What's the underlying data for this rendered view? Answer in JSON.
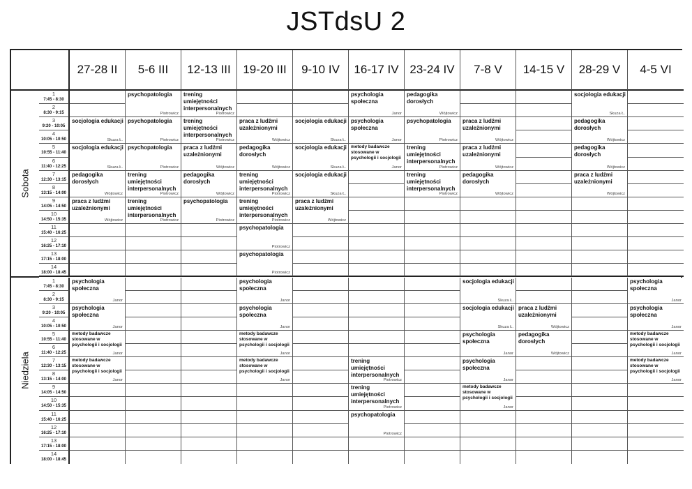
{
  "title": "JSTdsU 2",
  "columns": [
    "27-28 II",
    "5-6 III",
    "12-13 III",
    "19-20 III",
    "9-10 IV",
    "16-17 IV",
    "23-24 IV",
    "7-8 V",
    "14-15 V",
    "28-29 V",
    "4-5 VI"
  ],
  "slots": [
    {
      "n": "1",
      "time": "7:45 - 8:30"
    },
    {
      "n": "2",
      "time": "8:30 - 9:15"
    },
    {
      "n": "3",
      "time": "9:20 - 10:05"
    },
    {
      "n": "4",
      "time": "10:05 - 10:50"
    },
    {
      "n": "5",
      "time": "10:55 - 11:40"
    },
    {
      "n": "6",
      "time": "11:40 - 12:25"
    },
    {
      "n": "7",
      "time": "12:30 - 13:15"
    },
    {
      "n": "8",
      "time": "13:15 - 14:00"
    },
    {
      "n": "9",
      "time": "14:05 - 14:50"
    },
    {
      "n": "10",
      "time": "14:50 - 15:35"
    },
    {
      "n": "11",
      "time": "15:40 - 16:25"
    },
    {
      "n": "12",
      "time": "16:25 - 17:10"
    },
    {
      "n": "13",
      "time": "17:15 - 18:00"
    },
    {
      "n": "14",
      "time": "18:00 - 18:45"
    }
  ],
  "subjects": {
    "SE": "socjologia edukacji",
    "PP": "psychopatologia",
    "TR": "trening umiejętności interpersonalnych",
    "PD": "pedagogika dorosłych",
    "PL": "praca z ludźmi uzależnionymi",
    "PS": "psychologia społeczna",
    "MB": "metody badawcze stosowane w psychologii i socjologii"
  },
  "teachers": {
    "SE": "Skuza Ł.",
    "PP": "Piotrowicz",
    "TR": "Piotrowicz",
    "PD": "Wójtowicz",
    "PL": "Wójtowicz",
    "PS": "Janor",
    "MB": "Janor"
  },
  "days": [
    {
      "label": "Sobota",
      "blocks": [
        {
          "col": 0,
          "start": 3,
          "span": 2,
          "subj": "SE"
        },
        {
          "col": 0,
          "start": 5,
          "span": 2,
          "subj": "SE"
        },
        {
          "col": 0,
          "start": 7,
          "span": 2,
          "subj": "PD"
        },
        {
          "col": 0,
          "start": 9,
          "span": 2,
          "subj": "PL"
        },
        {
          "col": 1,
          "start": 1,
          "span": 2,
          "subj": "PP"
        },
        {
          "col": 1,
          "start": 3,
          "span": 2,
          "subj": "PP"
        },
        {
          "col": 1,
          "start": 5,
          "span": 2,
          "subj": "PP"
        },
        {
          "col": 1,
          "start": 7,
          "span": 2,
          "subj": "TR"
        },
        {
          "col": 1,
          "start": 9,
          "span": 2,
          "subj": "TR"
        },
        {
          "col": 2,
          "start": 1,
          "span": 2,
          "subj": "TR"
        },
        {
          "col": 2,
          "start": 3,
          "span": 2,
          "subj": "TR"
        },
        {
          "col": 2,
          "start": 5,
          "span": 2,
          "subj": "PL"
        },
        {
          "col": 2,
          "start": 7,
          "span": 2,
          "subj": "PD"
        },
        {
          "col": 2,
          "start": 9,
          "span": 2,
          "subj": "PP"
        },
        {
          "col": 3,
          "start": 3,
          "span": 2,
          "subj": "PL"
        },
        {
          "col": 3,
          "start": 5,
          "span": 2,
          "subj": "PD"
        },
        {
          "col": 3,
          "start": 7,
          "span": 2,
          "subj": "TR"
        },
        {
          "col": 3,
          "start": 9,
          "span": 2,
          "subj": "TR"
        },
        {
          "col": 3,
          "start": 11,
          "span": 2,
          "subj": "PP"
        },
        {
          "col": 3,
          "start": 13,
          "span": 2,
          "subj": "PP"
        },
        {
          "col": 4,
          "start": 3,
          "span": 2,
          "subj": "SE"
        },
        {
          "col": 4,
          "start": 5,
          "span": 2,
          "subj": "SE"
        },
        {
          "col": 4,
          "start": 7,
          "span": 2,
          "subj": "SE"
        },
        {
          "col": 4,
          "start": 9,
          "span": 2,
          "subj": "PL"
        },
        {
          "col": 5,
          "start": 1,
          "span": 2,
          "subj": "PS"
        },
        {
          "col": 5,
          "start": 3,
          "span": 2,
          "subj": "PS"
        },
        {
          "col": 5,
          "start": 5,
          "span": 2,
          "subj": "MB"
        },
        {
          "col": 6,
          "start": 1,
          "span": 2,
          "subj": "PD"
        },
        {
          "col": 6,
          "start": 3,
          "span": 2,
          "subj": "PP"
        },
        {
          "col": 6,
          "start": 5,
          "span": 2,
          "subj": "TR"
        },
        {
          "col": 6,
          "start": 7,
          "span": 2,
          "subj": "TR"
        },
        {
          "col": 7,
          "start": 3,
          "span": 2,
          "subj": "PL"
        },
        {
          "col": 7,
          "start": 5,
          "span": 2,
          "subj": "PL"
        },
        {
          "col": 7,
          "start": 7,
          "span": 2,
          "subj": "PD"
        },
        {
          "col": 9,
          "start": 1,
          "span": 2,
          "subj": "SE"
        },
        {
          "col": 9,
          "start": 3,
          "span": 2,
          "subj": "PD"
        },
        {
          "col": 9,
          "start": 5,
          "span": 2,
          "subj": "PD"
        },
        {
          "col": 9,
          "start": 7,
          "span": 2,
          "subj": "PL"
        }
      ]
    },
    {
      "label": "Niedziela",
      "blocks": [
        {
          "col": 0,
          "start": 1,
          "span": 2,
          "subj": "PS"
        },
        {
          "col": 0,
          "start": 3,
          "span": 2,
          "subj": "PS"
        },
        {
          "col": 0,
          "start": 5,
          "span": 2,
          "subj": "MB"
        },
        {
          "col": 0,
          "start": 7,
          "span": 2,
          "subj": "MB"
        },
        {
          "col": 3,
          "start": 1,
          "span": 2,
          "subj": "PS"
        },
        {
          "col": 3,
          "start": 3,
          "span": 2,
          "subj": "PS"
        },
        {
          "col": 3,
          "start": 5,
          "span": 2,
          "subj": "MB"
        },
        {
          "col": 3,
          "start": 7,
          "span": 2,
          "subj": "MB"
        },
        {
          "col": 5,
          "start": 7,
          "span": 2,
          "subj": "TR"
        },
        {
          "col": 5,
          "start": 9,
          "span": 2,
          "subj": "TR"
        },
        {
          "col": 5,
          "start": 11,
          "span": 2,
          "subj": "PP"
        },
        {
          "col": 7,
          "start": 1,
          "span": 2,
          "subj": "SE"
        },
        {
          "col": 7,
          "start": 3,
          "span": 2,
          "subj": "SE"
        },
        {
          "col": 7,
          "start": 5,
          "span": 2,
          "subj": "PS"
        },
        {
          "col": 7,
          "start": 7,
          "span": 2,
          "subj": "PS"
        },
        {
          "col": 7,
          "start": 9,
          "span": 2,
          "subj": "MB"
        },
        {
          "col": 8,
          "start": 3,
          "span": 2,
          "subj": "PL"
        },
        {
          "col": 8,
          "start": 5,
          "span": 2,
          "subj": "PD"
        },
        {
          "col": 10,
          "start": 1,
          "span": 2,
          "subj": "PS"
        },
        {
          "col": 10,
          "start": 3,
          "span": 2,
          "subj": "PS"
        },
        {
          "col": 10,
          "start": 5,
          "span": 2,
          "subj": "MB"
        },
        {
          "col": 10,
          "start": 7,
          "span": 2,
          "subj": "MB"
        }
      ]
    }
  ]
}
